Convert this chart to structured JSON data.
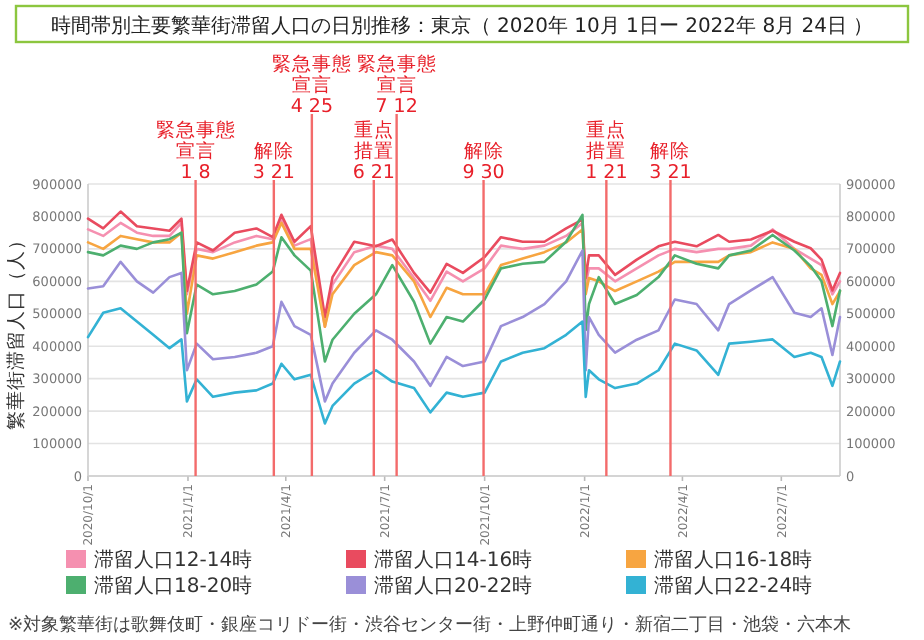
{
  "chart_data": {
    "type": "line",
    "title": "時間帯別主要繁華街滞留人口の日別推移：東京（ 2020年 10月 1日ー 2022年 8月 24日 ）",
    "ylabel": "繁華街滞留人口（人）",
    "x": [
      "2020-10-01",
      "2020-10-15",
      "2020-10-31",
      "2020-11-15",
      "2020-11-30",
      "2020-12-15",
      "2020-12-26",
      "2020-12-31",
      "2021-01-09",
      "2021-01-24",
      "2021-02-13",
      "2021-03-05",
      "2021-03-20",
      "2021-03-28",
      "2021-04-09",
      "2021-04-24",
      "2021-05-07",
      "2021-05-14",
      "2021-06-03",
      "2021-06-23",
      "2021-07-08",
      "2021-07-28",
      "2021-08-12",
      "2021-08-27",
      "2021-09-11",
      "2021-10-01",
      "2021-10-16",
      "2021-11-05",
      "2021-11-25",
      "2021-12-15",
      "2021-12-30",
      "2022-01-02",
      "2022-01-05",
      "2022-01-14",
      "2022-01-29",
      "2022-02-18",
      "2022-03-10",
      "2022-03-25",
      "2022-04-14",
      "2022-05-04",
      "2022-05-14",
      "2022-06-03",
      "2022-06-23",
      "2022-07-13",
      "2022-07-28",
      "2022-08-07",
      "2022-08-17",
      "2022-08-24"
    ],
    "series": [
      {
        "name": "滞留人口12-14時",
        "color": "#f590b0",
        "values": [
          760000,
          740000,
          780000,
          750000,
          740000,
          740000,
          780000,
          560000,
          700000,
          690000,
          720000,
          740000,
          730000,
          790000,
          710000,
          730000,
          460000,
          590000,
          690000,
          710000,
          700000,
          610000,
          540000,
          630000,
          600000,
          640000,
          710000,
          700000,
          710000,
          740000,
          780000,
          590000,
          640000,
          640000,
          600000,
          640000,
          680000,
          700000,
          690000,
          700000,
          700000,
          710000,
          760000,
          700000,
          670000,
          650000,
          560000,
          600000
        ]
      },
      {
        "name": "滞留人口14-16時",
        "color": "#e94b5f",
        "values": [
          793000,
          763000,
          815000,
          770000,
          763000,
          756000,
          793000,
          570000,
          720000,
          695000,
          750000,
          763000,
          736000,
          805000,
          722000,
          770000,
          490000,
          613000,
          722000,
          708000,
          729000,
          626000,
          565000,
          654000,
          626000,
          675000,
          736000,
          722000,
          722000,
          763000,
          790000,
          610000,
          680000,
          680000,
          620000,
          667000,
          708000,
          722000,
          708000,
          743000,
          722000,
          729000,
          756000,
          722000,
          702000,
          667000,
          572000,
          626000
        ]
      },
      {
        "name": "滞留人口16-18時",
        "color": "#f7a541",
        "values": [
          720000,
          700000,
          740000,
          730000,
          720000,
          720000,
          750000,
          500000,
          680000,
          670000,
          690000,
          710000,
          720000,
          780000,
          700000,
          700000,
          460000,
          560000,
          650000,
          690000,
          680000,
          600000,
          490000,
          580000,
          560000,
          560000,
          650000,
          670000,
          690000,
          720000,
          760000,
          560000,
          610000,
          600000,
          570000,
          600000,
          630000,
          660000,
          660000,
          660000,
          680000,
          690000,
          720000,
          700000,
          640000,
          620000,
          530000,
          570000
        ]
      },
      {
        "name": "滞留人口18-20時",
        "color": "#4daf6f",
        "values": [
          690000,
          680000,
          710000,
          700000,
          720000,
          730000,
          750000,
          440000,
          590000,
          560000,
          570000,
          590000,
          630000,
          736000,
          680000,
          633000,
          353000,
          420000,
          500000,
          560000,
          650000,
          537000,
          408000,
          490000,
          476000,
          544000,
          640000,
          654000,
          660000,
          722000,
          805000,
          450000,
          530000,
          613000,
          530000,
          558000,
          613000,
          680000,
          654000,
          640000,
          680000,
          695000,
          743000,
          695000,
          647000,
          600000,
          462000,
          572000
        ]
      },
      {
        "name": "滞留人口20-22時",
        "color": "#9a8fd8",
        "values": [
          578000,
          585000,
          660000,
          600000,
          565000,
          613000,
          626000,
          326000,
          408000,
          360000,
          367000,
          380000,
          400000,
          537000,
          462000,
          435000,
          230000,
          285000,
          380000,
          449000,
          420000,
          353000,
          278000,
          367000,
          339000,
          353000,
          462000,
          490000,
          530000,
          600000,
          695000,
          326000,
          490000,
          435000,
          380000,
          420000,
          449000,
          544000,
          530000,
          449000,
          530000,
          572000,
          613000,
          503000,
          490000,
          517000,
          373000,
          490000
        ]
      },
      {
        "name": "滞留人口22-24時",
        "color": "#33b2d4",
        "values": [
          428000,
          503000,
          517000,
          476000,
          435000,
          394000,
          421000,
          230000,
          298000,
          244000,
          257000,
          264000,
          285000,
          346000,
          298000,
          312000,
          162000,
          216000,
          285000,
          326000,
          291000,
          271000,
          196000,
          257000,
          244000,
          257000,
          353000,
          380000,
          394000,
          435000,
          476000,
          244000,
          326000,
          298000,
          271000,
          285000,
          326000,
          408000,
          387000,
          312000,
          408000,
          414000,
          421000,
          367000,
          380000,
          367000,
          278000,
          353000
        ]
      }
    ],
    "xlim": [
      "2020-10-01",
      "2022-08-24"
    ],
    "xticks": [
      {
        "value": "2020-10-01",
        "label": "2020/10/1"
      },
      {
        "value": "2021-01-01",
        "label": "2021/1/1"
      },
      {
        "value": "2021-04-01",
        "label": "2021/4/1"
      },
      {
        "value": "2021-07-01",
        "label": "2021/7/1"
      },
      {
        "value": "2021-10-01",
        "label": "2021/10/1"
      },
      {
        "value": "2022-01-01",
        "label": "2022/1/1"
      },
      {
        "value": "2022-04-01",
        "label": "2022/4/1"
      },
      {
        "value": "2022-07-01",
        "label": "2022/7/1"
      }
    ],
    "ylim": [
      0,
      900000
    ],
    "yticks": [
      0,
      100000,
      200000,
      300000,
      400000,
      500000,
      600000,
      700000,
      800000,
      900000
    ],
    "y2lim": [
      0,
      900000
    ],
    "y2ticks": [
      0,
      100000,
      200000,
      300000,
      400000,
      500000,
      600000,
      700000,
      800000,
      900000
    ],
    "grid": "y",
    "legend": "bottom",
    "ref_lines": [
      {
        "axis": "x",
        "value": "2021-01-08",
        "label": "緊急事態宣言1 8",
        "color": "#f36b6b"
      },
      {
        "axis": "x",
        "value": "2021-03-21",
        "label": "解除3 21",
        "color": "#f36b6b"
      },
      {
        "axis": "x",
        "value": "2021-04-25",
        "label": "緊急事態宣言4 25",
        "color": "#f36b6b"
      },
      {
        "axis": "x",
        "value": "2021-06-21",
        "label": "重点措置6 21",
        "color": "#f36b6b"
      },
      {
        "axis": "x",
        "value": "2021-07-12",
        "label": "緊急事態宣言7 12",
        "color": "#f36b6b"
      },
      {
        "axis": "x",
        "value": "2021-09-30",
        "label": "解除9 30",
        "color": "#f36b6b"
      },
      {
        "axis": "x",
        "value": "2022-01-21",
        "label": "重点措置1 21",
        "color": "#f36b6b"
      },
      {
        "axis": "x",
        "value": "2022-03-21",
        "label": "解除3 21",
        "color": "#f36b6b"
      }
    ],
    "annotations": [
      "※対象繁華街は歌舞伎町・銀座コリドー街・渋谷センター街・上野仲町通り・新宿二丁目・池袋・六本木"
    ]
  }
}
